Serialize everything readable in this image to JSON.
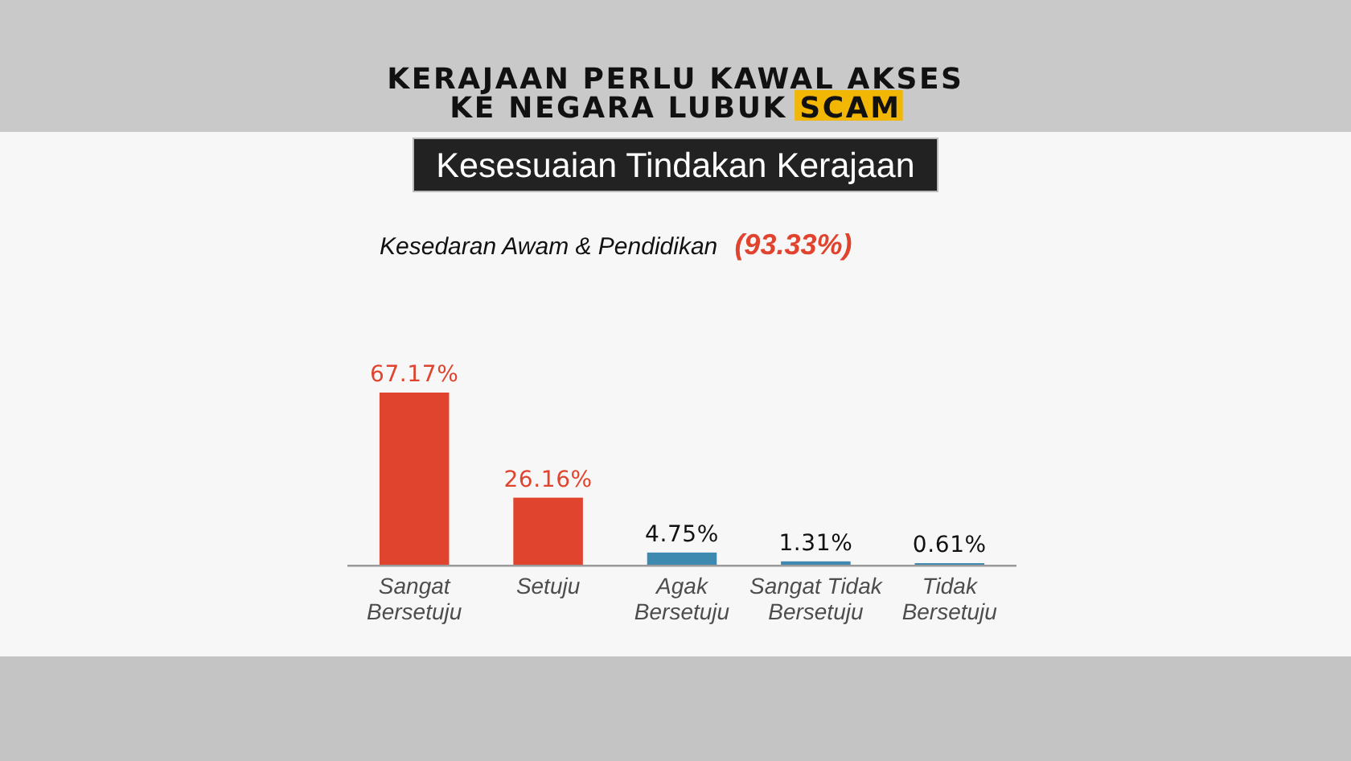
{
  "chart_data": {
    "type": "bar",
    "title": "KERAJAAN PERLU KAWAL AKSES\nKE NEGARA LUBUK SCAM",
    "subtitle": "Kesesuaian Tindakan Kerajaan",
    "annotations": [
      "Kesedaran Awam & Pendidikan",
      "(93.33%)"
    ],
    "categories": [
      "Sangat Bersetuju",
      "Setuju",
      "Agak Bersetuju",
      "Sangat Tidak Bersetuju",
      "Tidak Bersetuju"
    ],
    "values": [
      67.17,
      26.16,
      4.75,
      1.31,
      0.61
    ],
    "colors": [
      "#e0442e",
      "#e0442e",
      "#3d89b0",
      "#3d89b0",
      "#3d89b0"
    ],
    "value_labels": [
      "67.17%",
      "26.16%",
      "4.75%",
      "1.31%",
      "0.61%"
    ]
  }
}
